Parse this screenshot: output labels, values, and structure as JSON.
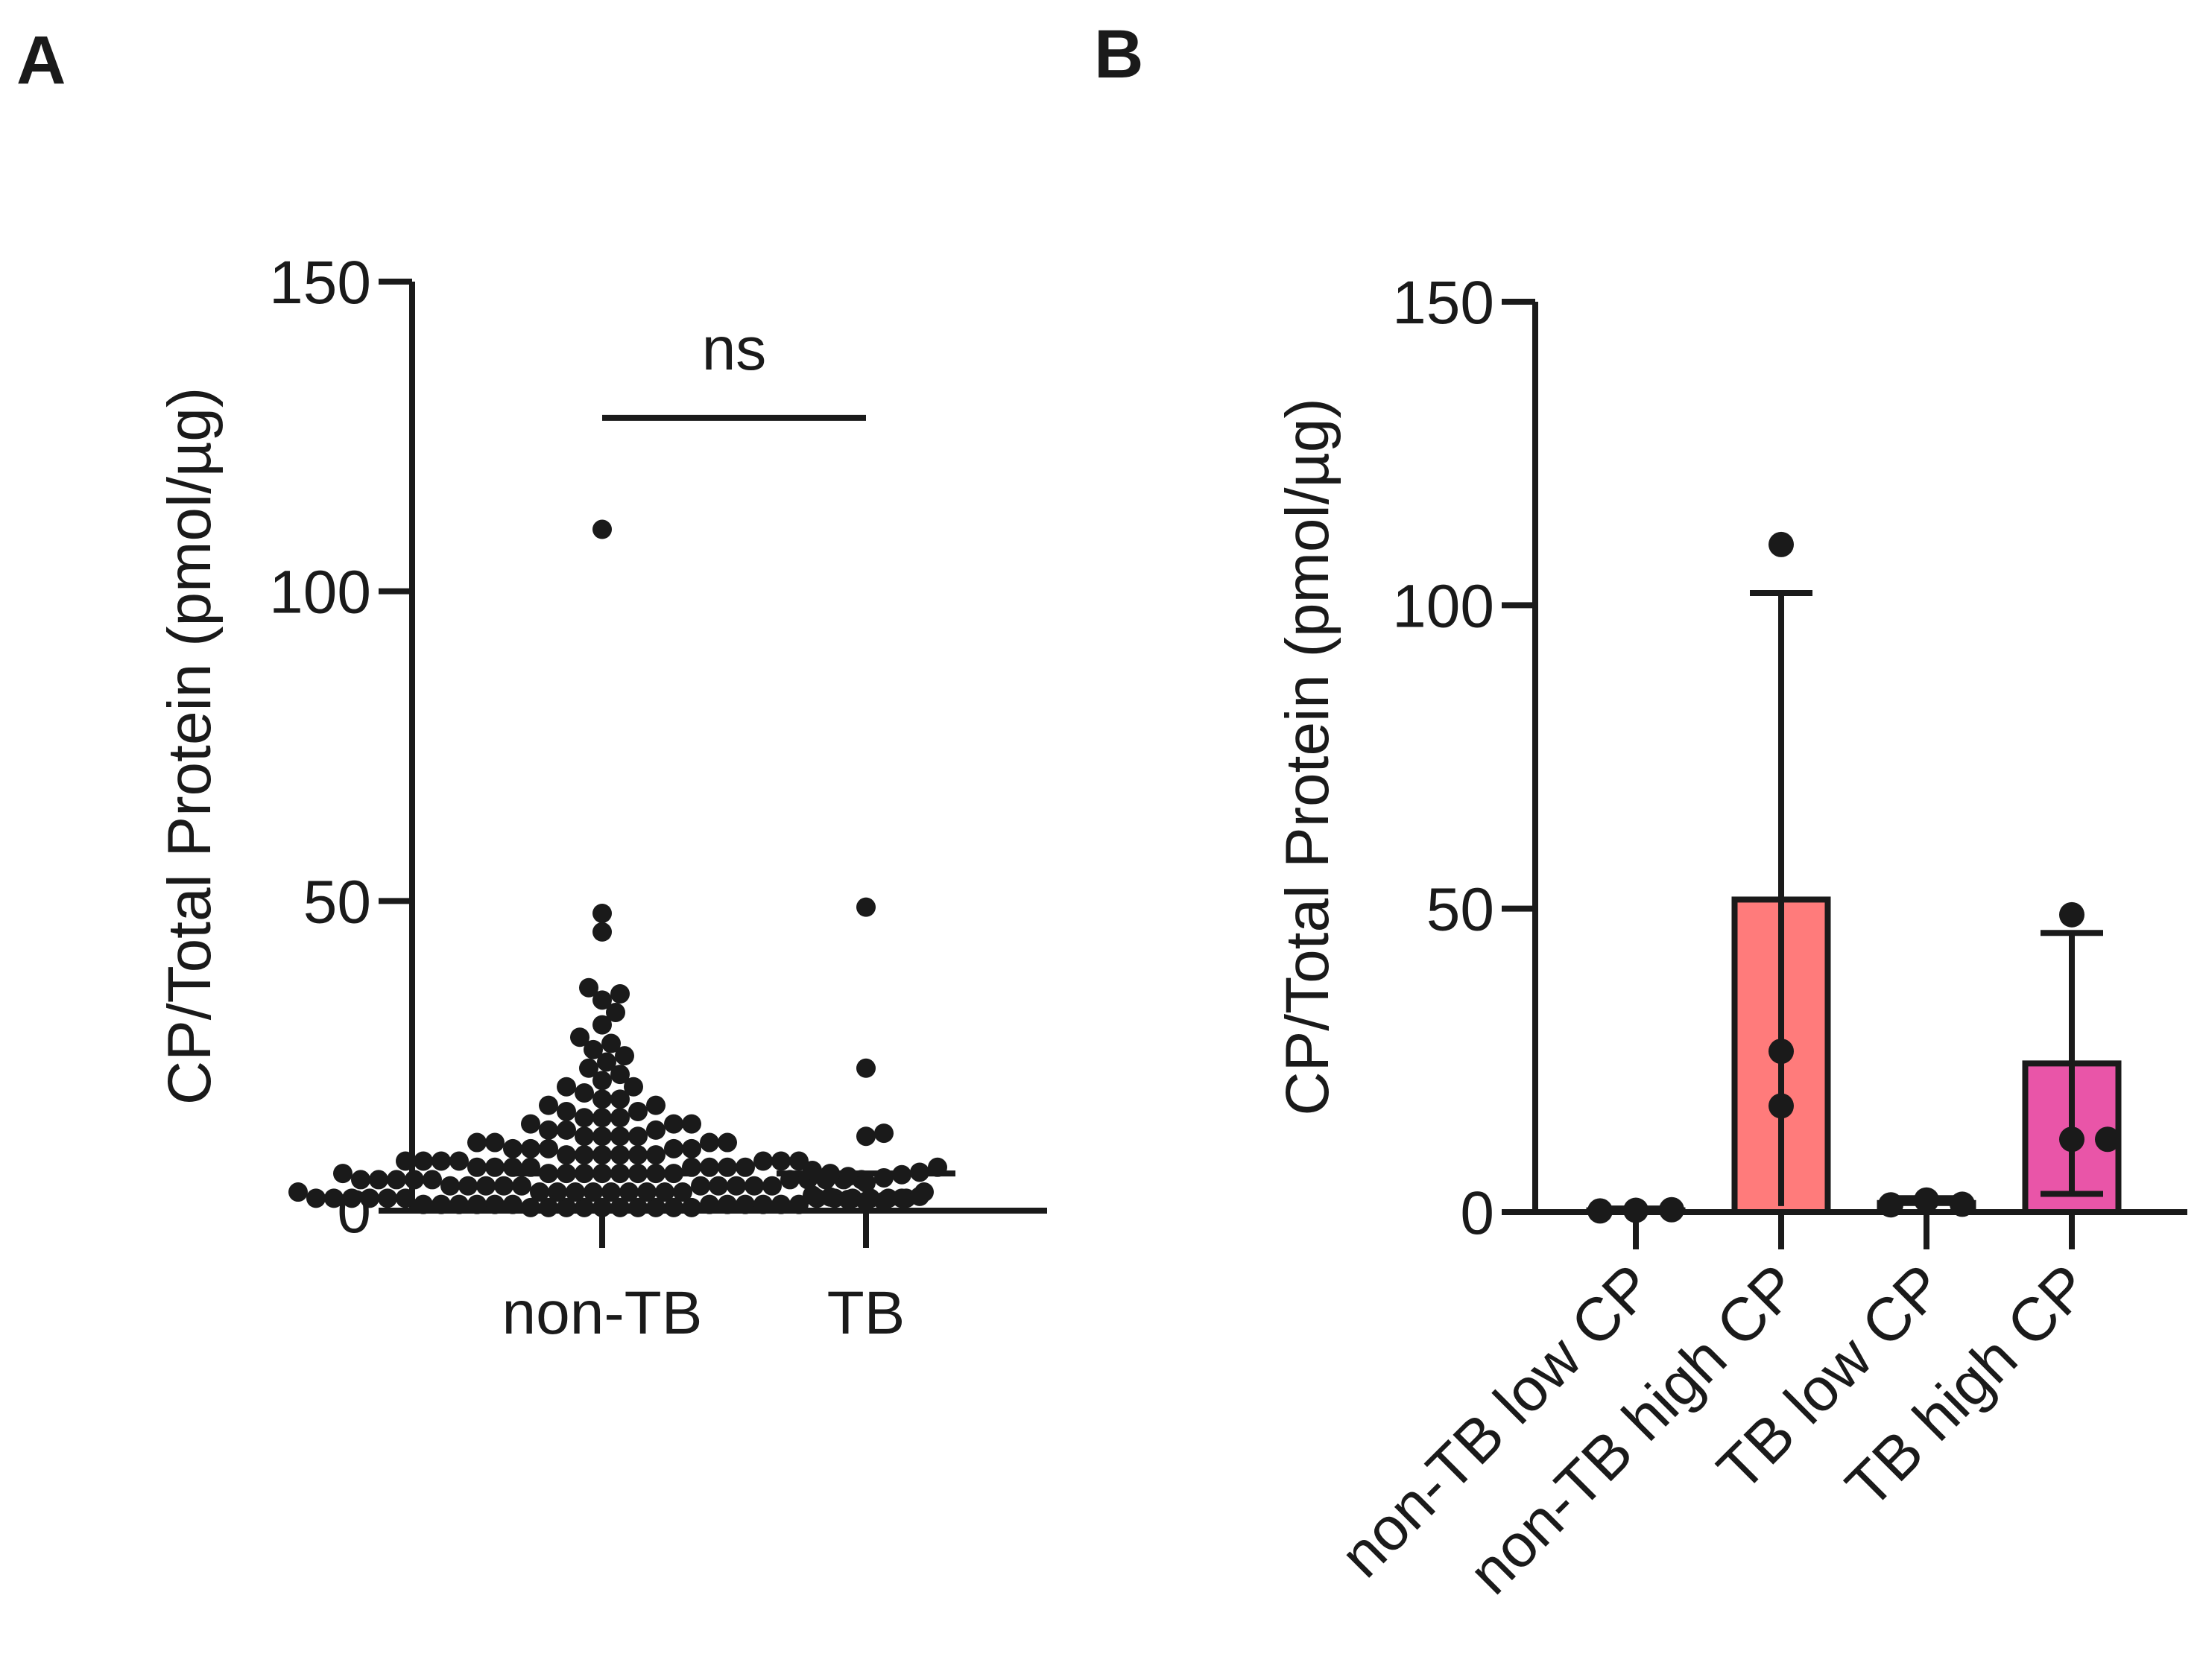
{
  "chart_data": [
    {
      "panel": "A",
      "type": "scatter",
      "ylabel": "CP/Total Protein (pmol/µg)",
      "xlabel": "",
      "ylim": [
        0,
        150
      ],
      "yticks": [
        "0",
        "50",
        "100",
        "150"
      ],
      "categories": [
        "non-TB",
        "TB"
      ],
      "series": [
        {
          "name": "non-TB",
          "median": 6,
          "values": [
            110,
            48,
            45,
            36,
            35,
            34,
            32,
            30,
            28,
            27,
            26,
            25,
            24,
            23,
            22,
            21,
            20,
            20,
            19,
            18,
            18,
            17,
            17,
            16,
            16,
            15,
            15,
            15,
            14,
            14,
            14,
            13,
            13,
            13,
            12,
            12,
            12,
            12,
            11,
            11,
            11,
            11,
            10,
            10,
            10,
            10,
            10,
            9,
            9,
            9,
            9,
            9,
            9,
            8,
            8,
            8,
            8,
            8,
            8,
            8,
            7,
            7,
            7,
            7,
            7,
            7,
            7,
            7,
            6,
            6,
            6,
            6,
            6,
            6,
            6,
            6,
            6,
            5,
            5,
            5,
            5,
            5,
            5,
            5,
            5,
            5,
            5,
            4,
            4,
            4,
            4,
            4,
            4,
            4,
            4,
            4,
            4,
            3,
            3,
            3,
            3,
            3,
            3,
            3,
            3,
            3,
            3,
            3,
            2,
            2,
            2,
            2,
            2,
            2,
            2,
            2,
            2,
            2,
            2,
            2,
            1,
            1,
            1,
            1,
            1,
            1,
            1,
            1,
            1,
            1,
            1,
            1,
            0.5,
            0.5,
            0.5,
            0.5,
            0.5,
            0.5,
            0.5,
            0.5,
            0.5,
            0.5
          ]
        },
        {
          "name": "TB",
          "median": 6,
          "values": [
            49,
            23,
            12.5,
            12,
            7,
            6.5,
            6.2,
            6,
            5.8,
            5.5,
            5.3,
            4.5,
            2.5,
            2.3,
            2.2,
            2,
            1.8,
            1.5,
            1.5
          ]
        }
      ],
      "annotation": {
        "text": "ns",
        "between": [
          "non-TB",
          "TB"
        ],
        "y": 128
      }
    },
    {
      "panel": "B",
      "type": "bar",
      "ylabel": "CP/Total Protein (pmol/µg)",
      "xlabel": "",
      "ylim": [
        0,
        150
      ],
      "yticks": [
        "0",
        "50",
        "100",
        "150"
      ],
      "categories": [
        "non-TB low CP",
        "non-TB high CP",
        "TB low CP",
        "TB high CP"
      ],
      "values": [
        0.3,
        51.5,
        1.5,
        24.5
      ],
      "error": [
        0.3,
        50.5,
        0.8,
        21.5
      ],
      "points": [
        [
          0.2,
          0.3,
          0.4
        ],
        [
          110,
          26.5,
          17.5
        ],
        [
          1.2,
          2.0,
          1.3
        ],
        [
          49,
          12,
          12
        ]
      ],
      "colors": [
        "#ffffff",
        "#ff7b7b",
        "#ffffff",
        "#e955a8"
      ]
    }
  ],
  "labels": {
    "panel_a": "A",
    "panel_b": "B",
    "ns": "ns"
  }
}
